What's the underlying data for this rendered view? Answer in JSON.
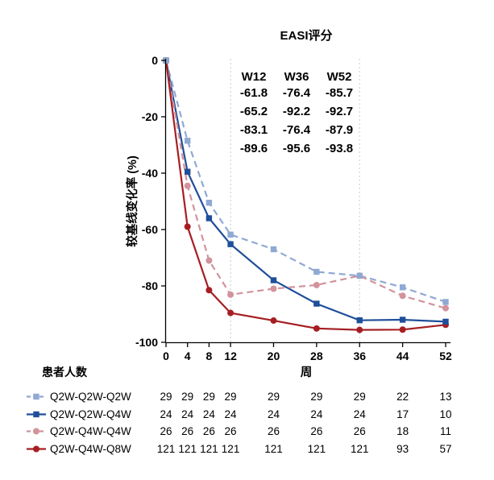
{
  "title": "EASI评分",
  "chart_data": {
    "type": "line",
    "title": "EASI评分",
    "xlabel": "周",
    "ylabel": "较基线变化率 (%)",
    "x": [
      0,
      4,
      8,
      12,
      20,
      28,
      36,
      44,
      52
    ],
    "xticks": [
      0,
      4,
      8,
      12,
      20,
      28,
      36,
      44,
      52
    ],
    "yticks": [
      0,
      -20,
      -40,
      -60,
      -80,
      -100
    ],
    "xlim": [
      0,
      52
    ],
    "ylim": [
      -100,
      0
    ],
    "grid": false,
    "reference_lines_x": [
      12,
      36
    ],
    "refline_color": "#c9c9c9",
    "axis_color": "#000000",
    "series": [
      {
        "name": "Q2W-Q2W-Q2W",
        "color": "#8FA9D3",
        "style": "dashed",
        "marker": "square",
        "values": [
          0,
          -28.5,
          -50.5,
          -61.8,
          -67.0,
          -75.0,
          -76.4,
          -80.5,
          -85.7
        ]
      },
      {
        "name": "Q2W-Q2W-Q4W",
        "color": "#1F4E9A",
        "style": "solid",
        "marker": "square",
        "values": [
          0,
          -39.5,
          -56.0,
          -65.2,
          -78.0,
          -86.3,
          -92.2,
          -92.0,
          -92.7
        ]
      },
      {
        "name": "Q2W-Q4W-Q4W",
        "color": "#D2939C",
        "style": "dashed",
        "marker": "circle",
        "values": [
          0,
          -44.5,
          -71.0,
          -83.1,
          -81.0,
          -79.7,
          -76.4,
          -83.5,
          -87.9
        ]
      },
      {
        "name": "Q2W-Q4W-Q8W",
        "color": "#A61E22",
        "style": "solid",
        "marker": "circle",
        "values": [
          0,
          -59.0,
          -81.5,
          -89.6,
          -92.3,
          -95.1,
          -95.6,
          -95.5,
          -93.8
        ]
      }
    ],
    "annotation": {
      "headers": [
        "W12",
        "W36",
        "W52"
      ],
      "rows": [
        {
          "series": "Q2W-Q2W-Q2W",
          "color": "#8FA9D3",
          "values": [
            "-61.8",
            "-76.4",
            "-85.7"
          ]
        },
        {
          "series": "Q2W-Q2W-Q4W",
          "color": "#1F4E9A",
          "values": [
            "-65.2",
            "-92.2",
            "-92.7"
          ]
        },
        {
          "series": "Q2W-Q4W-Q4W",
          "color": "#D2939C",
          "values": [
            "-83.1",
            "-76.4",
            "-87.9"
          ]
        },
        {
          "series": "Q2W-Q4W-Q8W",
          "color": "#A61E22",
          "values": [
            "-89.6",
            "-95.6",
            "-93.8"
          ]
        }
      ]
    }
  },
  "patients_table": {
    "title": "患者人数",
    "rows": [
      {
        "label": "Q2W-Q2W-Q2W",
        "color": "#8FA9D3",
        "style": "dashed",
        "marker": "square",
        "counts": [
          "29",
          "29",
          "29",
          "29",
          "29",
          "29",
          "29",
          "22",
          "13"
        ]
      },
      {
        "label": "Q2W-Q2W-Q4W",
        "color": "#1F4E9A",
        "style": "solid",
        "marker": "square",
        "counts": [
          "24",
          "24",
          "24",
          "24",
          "24",
          "24",
          "24",
          "17",
          "10"
        ]
      },
      {
        "label": "Q2W-Q4W-Q4W",
        "color": "#D2939C",
        "style": "dashed",
        "marker": "circle",
        "counts": [
          "26",
          "26",
          "26",
          "26",
          "26",
          "26",
          "26",
          "18",
          "11"
        ]
      },
      {
        "label": "Q2W-Q4W-Q8W",
        "color": "#A61E22",
        "style": "solid",
        "marker": "circle",
        "counts": [
          "121",
          "121",
          "121",
          "121",
          "121",
          "121",
          "121",
          "93",
          "57"
        ]
      }
    ]
  }
}
